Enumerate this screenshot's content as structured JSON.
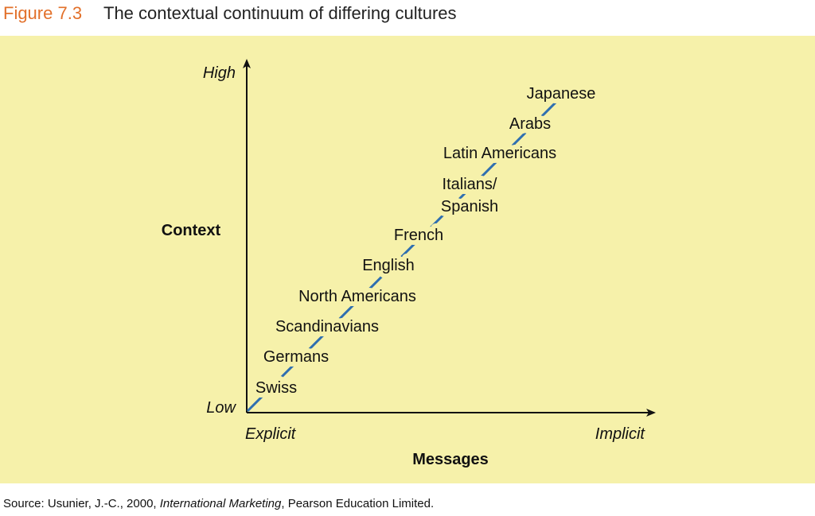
{
  "header": {
    "figure": "Figure 7.3",
    "title": "The contextual continuum of differing cultures"
  },
  "diagram": {
    "y_axis": {
      "label": "Context",
      "high": "High",
      "low": "Low"
    },
    "x_axis": {
      "label": "Messages",
      "left": "Explicit",
      "right": "Implicit"
    },
    "cultures": [
      {
        "lines": [
          "Swiss"
        ]
      },
      {
        "lines": [
          "Germans"
        ]
      },
      {
        "lines": [
          "Scandinavians"
        ]
      },
      {
        "lines": [
          "North Americans"
        ]
      },
      {
        "lines": [
          "English"
        ]
      },
      {
        "lines": [
          "French"
        ]
      },
      {
        "lines": [
          "Italians/",
          "Spanish"
        ]
      },
      {
        "lines": [
          "Latin Americans"
        ]
      },
      {
        "lines": [
          "Arabs"
        ]
      },
      {
        "lines": [
          "Japanese"
        ]
      }
    ]
  },
  "source": {
    "prefix": "Source: Usunier, J.-C., 2000, ",
    "title": "International Marketing",
    "suffix": ", Pearson Education Limited."
  }
}
